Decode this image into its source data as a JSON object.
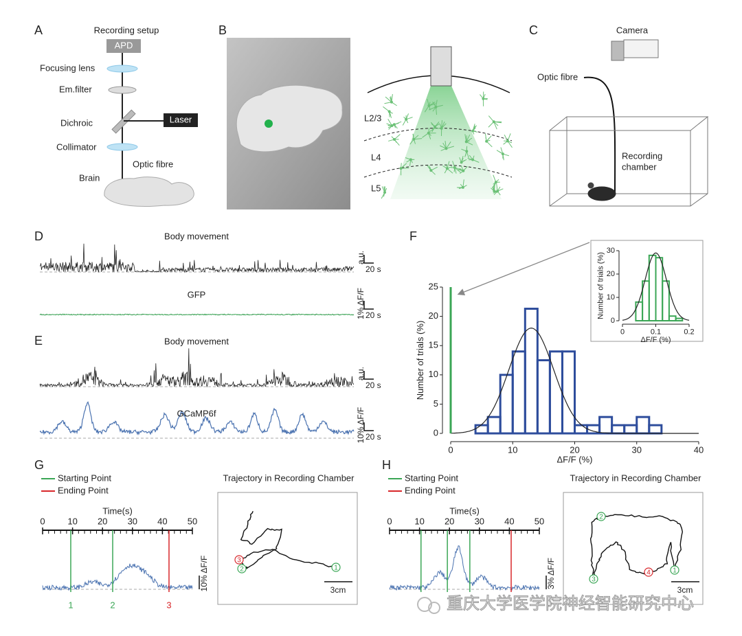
{
  "panels": {
    "A": {
      "letter": "A",
      "title": "Recording setup",
      "apd": "APD",
      "focusing_lens": "Focusing lens",
      "em_filter": "Em.filter",
      "dichroic": "Dichroic",
      "laser": "Laser",
      "collimator": "Collimator",
      "optic_fibre": "Optic fibre",
      "brain": "Brain"
    },
    "B": {
      "letter": "B",
      "layers": [
        "L2/3",
        "L4",
        "L5"
      ]
    },
    "C": {
      "letter": "C",
      "camera": "Camera",
      "optic_fibre": "Optic fibre",
      "chamber": [
        "Recording",
        "chamber"
      ]
    },
    "D": {
      "letter": "D",
      "traces": [
        "Body movement",
        "GFP"
      ],
      "scale_y": [
        "a.u.",
        "1% ΔF/F"
      ],
      "scale_x": [
        "20 s",
        "20 s"
      ]
    },
    "E": {
      "letter": "E",
      "traces": [
        "Body movement",
        "GCaMP6f"
      ],
      "scale_y": [
        "a.u.",
        "10% ΔF/F"
      ],
      "scale_x": [
        "20 s",
        "20 s"
      ]
    },
    "F": {
      "letter": "F"
    },
    "G": {
      "letter": "G",
      "legend": [
        {
          "name": "Starting Point",
          "color": "#3aa655"
        },
        {
          "name": "Ending Point",
          "color": "#d8262a"
        }
      ],
      "time_axis": {
        "label": "Time(s)",
        "xlim": [
          0,
          50
        ],
        "xticks": [
          0,
          10,
          20,
          30,
          40,
          50
        ]
      },
      "events": [
        {
          "t": 9.4,
          "label": "1",
          "color": "#3aa655"
        },
        {
          "t": 23.4,
          "label": "2",
          "color": "#3aa655"
        },
        {
          "t": 42.2,
          "label": "3",
          "color": "#d8262a"
        }
      ],
      "scale_y": "10% ΔF/F",
      "trajectory": {
        "title": "Trajectory in Recording Chamber",
        "scale": "3cm",
        "points": [
          {
            "label": "1",
            "color": "#3aa655"
          },
          {
            "label": "2",
            "color": "#3aa655"
          },
          {
            "label": "3",
            "color": "#d8262a"
          }
        ]
      }
    },
    "H": {
      "letter": "H",
      "legend": [
        {
          "name": "Starting Point",
          "color": "#3aa655"
        },
        {
          "name": "Ending Point",
          "color": "#d8262a"
        }
      ],
      "time_axis": {
        "label": "Time(s)",
        "xlim": [
          0,
          50
        ],
        "xticks": [
          0,
          10,
          20,
          30,
          40,
          50
        ]
      },
      "events": [
        {
          "t": 10.5,
          "color": "#3aa655"
        },
        {
          "t": 19.3,
          "color": "#3aa655"
        },
        {
          "t": 26.8,
          "color": "#3aa655"
        },
        {
          "t": 40.6,
          "color": "#d8262a"
        }
      ],
      "scale_y": "3% ΔF/F",
      "trajectory": {
        "title": "Trajectory in Recording Chamber",
        "scale": "3cm",
        "points": [
          {
            "label": "1",
            "color": "#3aa655"
          },
          {
            "label": "2",
            "color": "#3aa655"
          },
          {
            "label": "3",
            "color": "#3aa655"
          },
          {
            "label": "4",
            "color": "#d8262a"
          }
        ]
      }
    }
  },
  "chart_data": [
    {
      "type": "histogram",
      "xlabel": "ΔF/F (%)",
      "ylabel": "Number of trials (%)",
      "bins": [
        4,
        6,
        8,
        10,
        12,
        14,
        16,
        18,
        20,
        22,
        24,
        26,
        28,
        30,
        32,
        34
      ],
      "values": [
        1.4,
        2.8,
        10,
        14,
        21.3,
        12.5,
        14,
        14,
        1.4,
        1.4,
        2.8,
        1.4,
        1.4,
        2.8,
        1.4
      ],
      "color": "#2e4d9c",
      "xlim": [
        0,
        40
      ],
      "ylim": [
        0,
        25
      ],
      "xticks": [
        0,
        10,
        20,
        30,
        40
      ],
      "yticks": [
        0,
        5,
        10,
        15,
        20,
        25
      ],
      "fit": {
        "mean": 13,
        "sd": 3.6,
        "peak": 18
      },
      "control": {
        "x": 0,
        "value": 25,
        "color": "#3aa655"
      }
    },
    {
      "type": "histogram",
      "xlabel": "ΔF/F (%)",
      "ylabel": "Number of trials (%)",
      "bins": [
        0.04,
        0.06,
        0.08,
        0.1,
        0.12,
        0.14,
        0.16,
        0.18
      ],
      "values": [
        8,
        17,
        28,
        27,
        17,
        2,
        1
      ],
      "color": "#3aa655",
      "xlim": [
        0,
        0.2
      ],
      "ylim": [
        0,
        30
      ],
      "xticks": [
        0,
        0.1,
        0.2
      ],
      "yticks": [
        0,
        10,
        20,
        30
      ],
      "fit": {
        "mean": 0.1,
        "sd": 0.032,
        "peak": 29
      }
    }
  ],
  "watermark": "重庆大学医学院神经智能研究中心"
}
